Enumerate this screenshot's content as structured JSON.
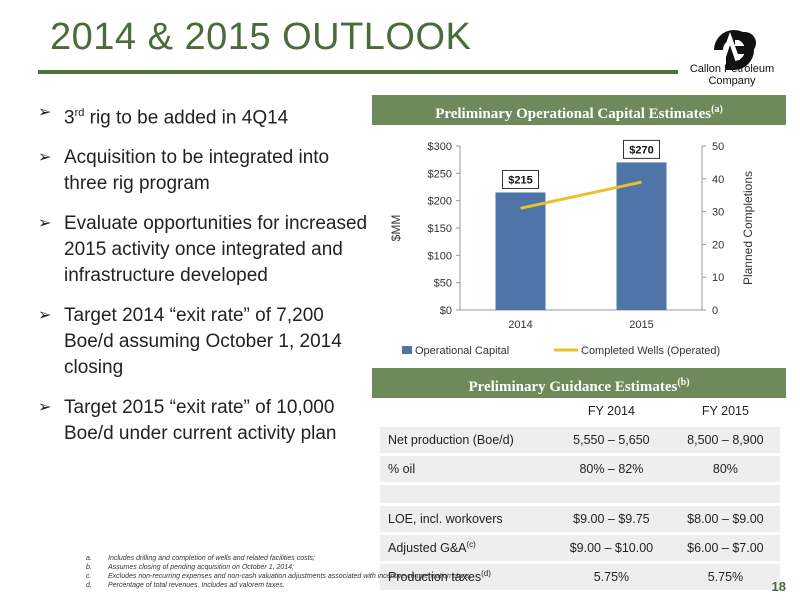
{
  "page": {
    "title": "2014 & 2015 OUTLOOK",
    "page_number": "18"
  },
  "logo": {
    "line1": "Callon Petroleum",
    "line2": "Company",
    "icon": "callon-cp-logo"
  },
  "bullets": [
    {
      "text_pre": "3",
      "text_sup": "rd",
      "text_post": " rig to be added in 4Q14"
    },
    {
      "text_pre": "Acquisition to be integrated into three rig program",
      "text_sup": "",
      "text_post": ""
    },
    {
      "text_pre": "Evaluate opportunities for increased 2015 activity once integrated and infrastructure developed",
      "text_sup": "",
      "text_post": ""
    },
    {
      "text_pre": "Target 2014 “exit rate” of 7,200 Boe/d assuming October 1, 2014 closing",
      "text_sup": "",
      "text_post": ""
    },
    {
      "text_pre": "Target 2015 “exit rate” of 10,000 Boe/d under current activity plan",
      "text_sup": "",
      "text_post": ""
    }
  ],
  "chart_panel": {
    "title": "Preliminary Operational Capital Estimates",
    "title_sup": "(a)"
  },
  "chart_data": {
    "type": "bar",
    "categories": [
      "2014",
      "2015"
    ],
    "series": [
      {
        "name": "Operational Capital",
        "type": "bar",
        "axis": "left",
        "values": [
          215,
          270
        ],
        "labels": [
          "$215",
          "$270"
        ],
        "color": "#4f75a8"
      },
      {
        "name": "Completed Wells (Operated)",
        "type": "line",
        "axis": "right",
        "values": [
          31,
          39
        ],
        "color": "#e6c12a"
      }
    ],
    "ylabel": "$MM",
    "y2label": "Planned Completions",
    "ylim": [
      0,
      300
    ],
    "y2lim": [
      0,
      50
    ],
    "yticks": [
      "$0",
      "$50",
      "$100",
      "$150",
      "$200",
      "$250",
      "$300"
    ],
    "y2ticks": [
      "0",
      "10",
      "20",
      "30",
      "40",
      "50"
    ],
    "grid": false,
    "legend": "bottom"
  },
  "guidance": {
    "title": "Preliminary Guidance Estimates",
    "title_sup": "(b)",
    "col_2014": "FY 2014",
    "col_2015": "FY 2015",
    "rows": [
      {
        "label": "Net production (Boe/d)",
        "sup": "",
        "v2014": "5,550 – 5,650",
        "v2015": "8,500 – 8,900"
      },
      {
        "label": "% oil",
        "sup": "",
        "v2014": "80% – 82%",
        "v2015": "80%"
      },
      {
        "label": "LOE, incl. workovers",
        "sup": "",
        "v2014": "$9.00 – $9.75",
        "v2015": "$8.00 – $9.00"
      },
      {
        "label": "Adjusted G&A",
        "sup": "(c)",
        "v2014": "$9.00 – $10.00",
        "v2015": "$6.00 – $7.00"
      },
      {
        "label": "Production taxes",
        "sup": "(d)",
        "v2014": "5.75%",
        "v2015": "5.75%"
      }
    ]
  },
  "footnotes": [
    {
      "key": "a.",
      "text": "Includes drilling and completion of wells and related facilities costs;"
    },
    {
      "key": "b.",
      "text": "Assumes closing of pending acquisition on October 1, 2014;"
    },
    {
      "key": "c.",
      "text": "Excludes non-recurring expenses and non-cash valuation adjustments associated with incentive compensation plans;"
    },
    {
      "key": "d.",
      "text": "Percentage of total revenues. Includes ad valorem taxes."
    }
  ],
  "colors": {
    "accent": "#4a6b3a",
    "panel": "#6f8a5a",
    "bar": "#4f75a8",
    "line": "#e6c12a"
  }
}
